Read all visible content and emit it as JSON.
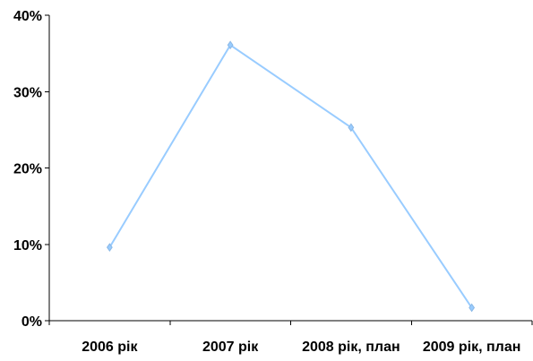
{
  "chart_data": {
    "type": "line",
    "title": "",
    "xlabel": "",
    "ylabel": "",
    "categories": [
      "2006 рік",
      "2007 рік",
      "2008 рік, план",
      "2009 рік, план"
    ],
    "series": [
      {
        "values": [
          9.6,
          36.1,
          25.3,
          1.7
        ],
        "color": "#99ccff",
        "marker": "diamond"
      }
    ],
    "y_ticks": [
      0,
      10,
      20,
      30,
      40
    ],
    "y_tick_labels": [
      "0%",
      "10%",
      "20%",
      "30%",
      "40%"
    ],
    "ylim": [
      0,
      40
    ],
    "grid": false,
    "legend": "none"
  }
}
